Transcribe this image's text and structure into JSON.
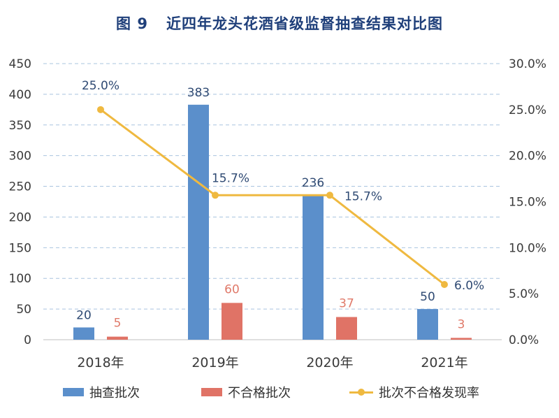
{
  "title": {
    "fig": "图 9",
    "text": "近四年龙头花酒省级监督抽查结果对比图"
  },
  "colors": {
    "title": "#1f3f7a",
    "bar_sampled": "#5b8fcb",
    "bar_failed": "#e07366",
    "line_rate": "#efb940",
    "grid": "#a9c4df"
  },
  "chart_data": {
    "type": "bar+line",
    "categories": [
      "2018年",
      "2019年",
      "2020年",
      "2021年"
    ],
    "series": [
      {
        "name": "抽查批次",
        "type": "bar",
        "axis": "left",
        "values": [
          20,
          383,
          236,
          50
        ],
        "labels": [
          "20",
          "383",
          "236",
          "50"
        ]
      },
      {
        "name": "不合格批次",
        "type": "bar",
        "axis": "left",
        "values": [
          5,
          60,
          37,
          3
        ],
        "labels": [
          "5",
          "60",
          "37",
          "3"
        ]
      },
      {
        "name": "批次不合格发现率",
        "type": "line",
        "axis": "right",
        "values": [
          25.0,
          15.7,
          15.7,
          6.0
        ],
        "labels": [
          "25.0%",
          "15.7%",
          "15.7%",
          "6.0%"
        ]
      }
    ],
    "left_axis": {
      "min": 0,
      "max": 450,
      "ticks": [
        "0",
        "50",
        "100",
        "150",
        "200",
        "250",
        "300",
        "350",
        "400",
        "450"
      ]
    },
    "right_axis": {
      "min": 0,
      "max": 30,
      "ticks": [
        "0.0%",
        "5.0%",
        "10.0%",
        "15.0%",
        "20.0%",
        "25.0%",
        "30.0%"
      ]
    },
    "legend_position": "bottom"
  }
}
